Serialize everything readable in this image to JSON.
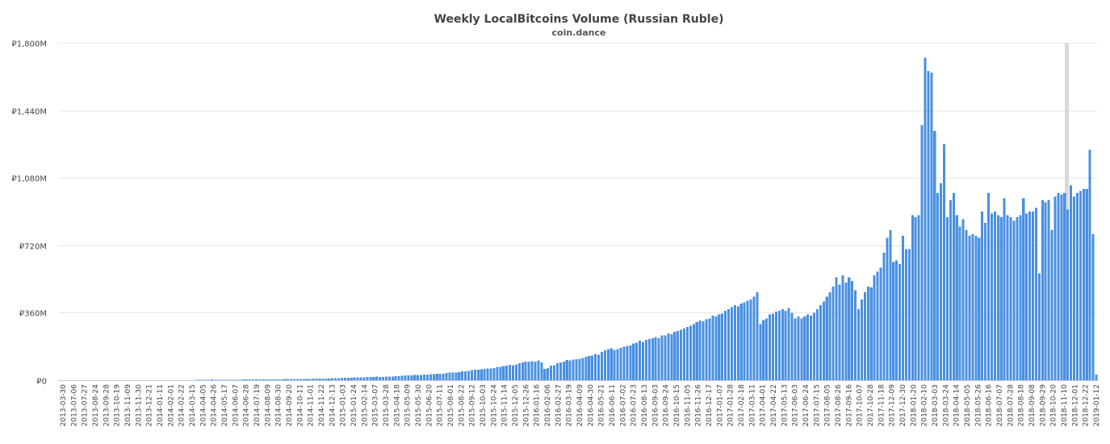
{
  "chart_data": {
    "type": "bar",
    "title": "Weekly LocalBitcoins Volume (Russian Ruble)",
    "subtitle": "coin.dance",
    "xlabel": "",
    "ylabel": "",
    "ylim": [
      0,
      1800
    ],
    "yunit": "M",
    "ycurrency": "₽",
    "y_ticks": [
      "₽0",
      "₽360M",
      "₽720M",
      "₽1,080M",
      "₽1,440M",
      "₽1,800M"
    ],
    "grid": true,
    "legend": "none",
    "bar_color": "#4a90e2",
    "highlight_color": "#d9d9d9",
    "highlight_date": "2018-11-10",
    "x_tick_labels": [
      "2013-03-30",
      "2013-07-06",
      "2013-07-27",
      "2013-08-24",
      "2013-09-28",
      "2013-10-19",
      "2013-11-09",
      "2013-11-30",
      "2013-12-21",
      "2014-01-11",
      "2014-02-01",
      "2014-02-22",
      "2014-03-15",
      "2014-04-05",
      "2014-04-26",
      "2014-05-17",
      "2014-06-07",
      "2014-06-28",
      "2014-07-19",
      "2014-08-09",
      "2014-08-30",
      "2014-09-20",
      "2014-10-11",
      "2014-11-01",
      "2014-11-22",
      "2014-12-13",
      "2015-01-03",
      "2015-01-24",
      "2015-02-14",
      "2015-03-07",
      "2015-03-28",
      "2015-04-18",
      "2015-05-09",
      "2015-05-30",
      "2015-06-20",
      "2015-07-11",
      "2015-08-01",
      "2015-08-22",
      "2015-09-12",
      "2015-10-03",
      "2015-10-24",
      "2015-11-14",
      "2015-12-05",
      "2015-12-26",
      "2016-01-16",
      "2016-02-06",
      "2016-02-27",
      "2016-03-19",
      "2016-04-09",
      "2016-04-30",
      "2016-05-21",
      "2016-06-11",
      "2016-07-02",
      "2016-07-23",
      "2016-08-13",
      "2016-09-03",
      "2016-09-24",
      "2016-10-15",
      "2016-11-05",
      "2016-11-26",
      "2016-12-17",
      "2017-01-07",
      "2017-01-28",
      "2017-02-18",
      "2017-03-11",
      "2017-04-01",
      "2017-04-22",
      "2017-05-13",
      "2017-06-03",
      "2017-06-24",
      "2017-07-15",
      "2017-08-05",
      "2017-08-26",
      "2017-09-16",
      "2017-10-07",
      "2017-10-28",
      "2017-11-18",
      "2017-12-09",
      "2017-12-30",
      "2018-01-20",
      "2018-02-10",
      "2018-03-03",
      "2018-03-24",
      "2018-04-14",
      "2018-05-05",
      "2018-05-26",
      "2018-06-16",
      "2018-07-07",
      "2018-07-28",
      "2018-08-18",
      "2018-09-08",
      "2018-09-29",
      "2018-10-20",
      "2018-11-10",
      "2018-12-01",
      "2018-12-22",
      "2019-01-12"
    ],
    "values": [
      0,
      0,
      0,
      0,
      0,
      0,
      0,
      0,
      0,
      0,
      0,
      0,
      0,
      0,
      0,
      0,
      0,
      0,
      0,
      0,
      0,
      0,
      0,
      0,
      0,
      0,
      0,
      0,
      0,
      0,
      0,
      0,
      0,
      0,
      0,
      0,
      0,
      1,
      1,
      1,
      1,
      1,
      1,
      2,
      3,
      3,
      3,
      3,
      4,
      3,
      3,
      3,
      3,
      3,
      3,
      3,
      3,
      3,
      4,
      4,
      4,
      4,
      4,
      4,
      5,
      4,
      5,
      5,
      5,
      5,
      5,
      6,
      6,
      6,
      6,
      6,
      7,
      6,
      7,
      7,
      8,
      9,
      9,
      9,
      8,
      9,
      10,
      10,
      11,
      12,
      12,
      13,
      14,
      15,
      16,
      15,
      16,
      18,
      17,
      18,
      19,
      18,
      18,
      19,
      20,
      20,
      21,
      22,
      24,
      26,
      25,
      26,
      27,
      28,
      28,
      30,
      30,
      32,
      33,
      35,
      34,
      35,
      38,
      40,
      42,
      42,
      44,
      47,
      48,
      50,
      53,
      55,
      55,
      58,
      60,
      62,
      62,
      65,
      70,
      72,
      75,
      78,
      82,
      80,
      85,
      90,
      95,
      98,
      100,
      102,
      100,
      105,
      95,
      60,
      65,
      78,
      80,
      90,
      95,
      100,
      108,
      105,
      110,
      112,
      115,
      118,
      125,
      130,
      132,
      140,
      135,
      150,
      160,
      165,
      170,
      162,
      165,
      172,
      178,
      182,
      185,
      195,
      200,
      210,
      205,
      215,
      220,
      225,
      230,
      225,
      240,
      238,
      250,
      245,
      258,
      262,
      270,
      275,
      285,
      290,
      300,
      310,
      318,
      315,
      325,
      330,
      345,
      340,
      350,
      355,
      370,
      380,
      390,
      400,
      395,
      410,
      415,
      425,
      430,
      445,
      470,
      300,
      320,
      330,
      350,
      355,
      365,
      370,
      380,
      370,
      385,
      360,
      330,
      340,
      330,
      340,
      350,
      345,
      360,
      380,
      400,
      420,
      445,
      470,
      500,
      550,
      510,
      560,
      520,
      550,
      530,
      480,
      380,
      430,
      470,
      500,
      495,
      560,
      580,
      600,
      680,
      760,
      800,
      630,
      640,
      620,
      770,
      700,
      700,
      880,
      870,
      880,
      1360,
      1720,
      1650,
      1640,
      1330,
      1000,
      1050,
      1260,
      870,
      960,
      1000,
      880,
      820,
      860,
      800,
      770,
      780,
      770,
      760,
      900,
      840,
      1000,
      890,
      900,
      880,
      870,
      970,
      880,
      870,
      850,
      870,
      880,
      970,
      890,
      900,
      900,
      920,
      570,
      960,
      950,
      960,
      800,
      980,
      1000,
      990,
      1000,
      910,
      1040,
      980,
      1000,
      1010,
      1020,
      1020,
      1230,
      780,
      30
    ]
  }
}
